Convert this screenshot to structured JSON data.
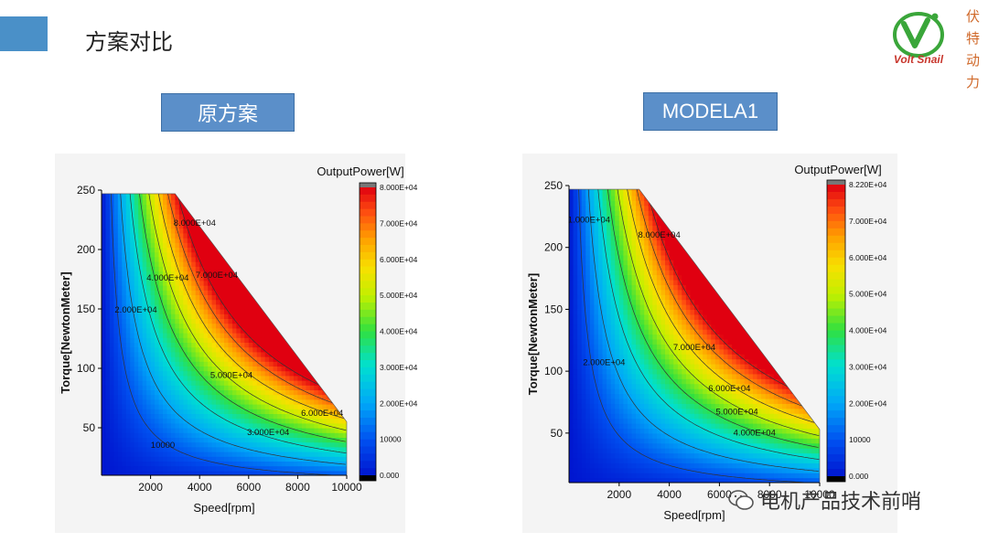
{
  "slide": {
    "title": "方案对比"
  },
  "logo": {
    "brand": "Volt Snail",
    "vertical_text": [
      "伏",
      "特",
      "动",
      "力"
    ]
  },
  "labels": {
    "left": "原方案",
    "right": "MODELA1"
  },
  "watermark": "电机产品技术前哨",
  "colors": {
    "accent": "#4a90c8",
    "label_box": "#5b8fc9"
  },
  "chart_data": [
    {
      "type": "heatmap",
      "title": "OutputPower[W]",
      "xlabel": "Speed[rpm]",
      "ylabel": "Torque[NewtonMeter]",
      "xlim": [
        0,
        10000
      ],
      "ylim": [
        10,
        250
      ],
      "xticks": [
        "2000",
        "4000",
        "6000",
        "8000",
        "10000"
      ],
      "yticks": [
        "50",
        "100",
        "150",
        "200",
        "250"
      ],
      "colorbar": {
        "min": 0,
        "max": 80000,
        "labels": [
          "8.000E+04",
          "7.000E+04",
          "6.000E+04",
          "5.000E+04",
          "4.000E+04",
          "3.000E+04",
          "2.000E+04",
          "10000",
          "0.000"
        ]
      },
      "region": {
        "t_max": 247,
        "corner_speed": 3000,
        "end_speed": 10000,
        "end_torque": 55
      },
      "contour_labels": [
        {
          "text": "8.000E+04",
          "speed": 3800,
          "torque": 220
        },
        {
          "text": "7.000E+04",
          "speed": 4700,
          "torque": 176
        },
        {
          "text": "4.000E+04",
          "speed": 2700,
          "torque": 174
        },
        {
          "text": "2.000E+04",
          "speed": 1400,
          "torque": 147
        },
        {
          "text": "5.000E+04",
          "speed": 5300,
          "torque": 92
        },
        {
          "text": "6.000E+04",
          "speed": 9000,
          "torque": 60
        },
        {
          "text": "3.000E+04",
          "speed": 6800,
          "torque": 44
        },
        {
          "text": "10000",
          "speed": 2500,
          "torque": 33
        }
      ]
    },
    {
      "type": "heatmap",
      "title": "OutputPower[W]",
      "xlabel": "Speed[rpm]",
      "ylabel": "Torque[NewtonMeter]",
      "xlim": [
        0,
        10000
      ],
      "ylim": [
        10,
        250
      ],
      "xticks": [
        "2000",
        "4000",
        "6000",
        "8000",
        "10000"
      ],
      "yticks": [
        "50",
        "100",
        "150",
        "200",
        "250"
      ],
      "colorbar": {
        "min": 0,
        "max": 82200,
        "labels": [
          "8.220E+04",
          "7.000E+04",
          "6.000E+04",
          "5.000E+04",
          "4.000E+04",
          "3.000E+04",
          "2.000E+04",
          "10000",
          "0.000"
        ]
      },
      "region": {
        "t_max": 247,
        "corner_speed": 2800,
        "end_speed": 10000,
        "end_torque": 53
      },
      "contour_labels": [
        {
          "text": "1.000E+04",
          "speed": 800,
          "torque": 220
        },
        {
          "text": "8.000E+04",
          "speed": 3600,
          "torque": 208
        },
        {
          "text": "7.000E+04",
          "speed": 5000,
          "torque": 117
        },
        {
          "text": "2.000E+04",
          "speed": 1400,
          "torque": 105
        },
        {
          "text": "6.000E+04",
          "speed": 6400,
          "torque": 84
        },
        {
          "text": "5.000E+04",
          "speed": 6700,
          "torque": 65
        },
        {
          "text": "4.000E+04",
          "speed": 7400,
          "torque": 48
        }
      ]
    }
  ]
}
